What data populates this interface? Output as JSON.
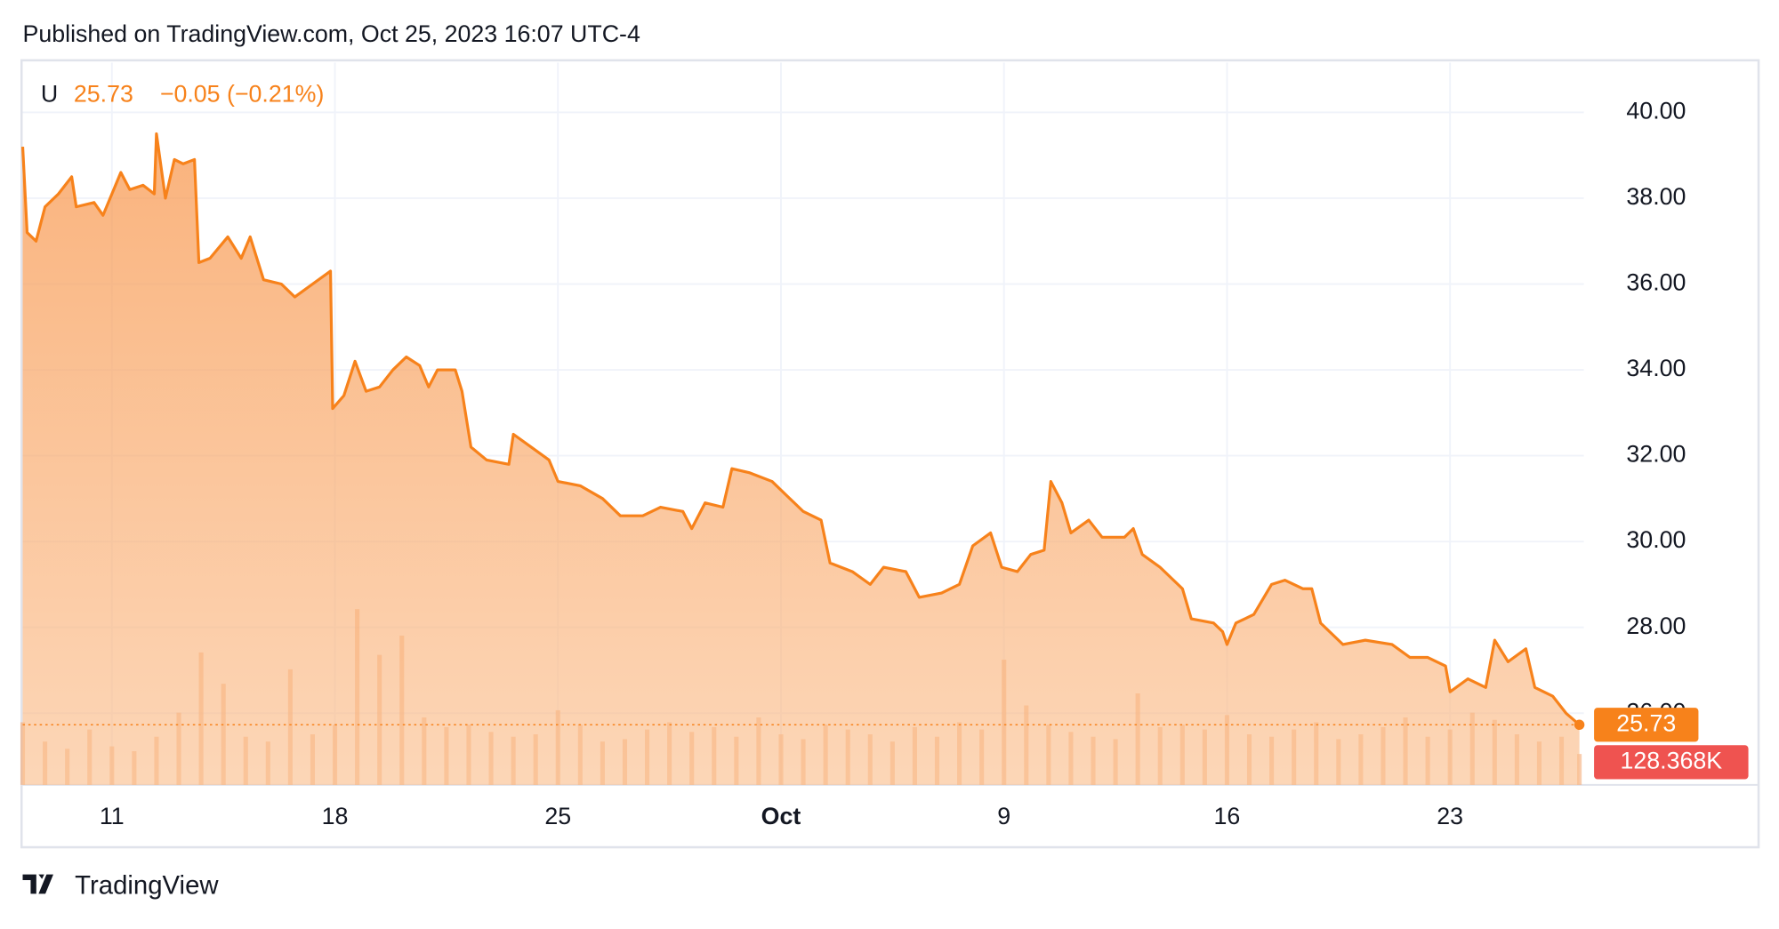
{
  "header": {
    "published": "Published on TradingView.com, Oct 25, 2023 16:07 UTC-4"
  },
  "footer": {
    "brand": "TradingView"
  },
  "chart_data": {
    "type": "area",
    "symbol": "U",
    "change": "−0.05 (−0.21%)",
    "xlim": [
      -2,
      33
    ],
    "xticks": [
      {
        "value": 0,
        "label": "11"
      },
      {
        "value": 5,
        "label": "18"
      },
      {
        "value": 10,
        "label": "25"
      },
      {
        "value": 15,
        "label": "Oct"
      },
      {
        "value": 20,
        "label": "9"
      },
      {
        "value": 25,
        "label": "16"
      },
      {
        "value": 30,
        "label": "23"
      }
    ],
    "ylim": [
      24.33,
      41.16
    ],
    "yticks": [
      {
        "value": 26,
        "label": "26.00"
      },
      {
        "value": 28,
        "label": "28.00"
      },
      {
        "value": 30,
        "label": "30.00"
      },
      {
        "value": 32,
        "label": "32.00"
      },
      {
        "value": 34,
        "label": "34.00"
      },
      {
        "value": 36,
        "label": "36.00"
      },
      {
        "value": 38,
        "label": "38.00"
      },
      {
        "value": 40,
        "label": "40.00"
      }
    ],
    "grid": true,
    "series": [
      {
        "name": "U",
        "color": "#f7821b",
        "x": [
          -2.0,
          -1.9,
          -1.7,
          -1.5,
          -1.2,
          -0.9,
          -0.8,
          -0.4,
          -0.2,
          0.2,
          0.4,
          0.7,
          0.95,
          1.0,
          1.2,
          1.4,
          1.6,
          1.85,
          1.95,
          2.2,
          2.6,
          2.9,
          3.1,
          3.4,
          3.8,
          4.1,
          4.5,
          4.9,
          4.95,
          5.2,
          5.45,
          5.7,
          6.0,
          6.3,
          6.6,
          6.9,
          7.1,
          7.3,
          7.7,
          7.85,
          8.05,
          8.4,
          8.9,
          9.0,
          9.4,
          9.8,
          10.0,
          10.5,
          11.0,
          11.4,
          11.9,
          12.3,
          12.8,
          13.0,
          13.3,
          13.7,
          13.9,
          14.3,
          14.8,
          15.1,
          15.5,
          15.9,
          16.1,
          16.6,
          17.0,
          17.3,
          17.8,
          18.1,
          18.6,
          19.0,
          19.3,
          19.7,
          19.95,
          20.3,
          20.6,
          20.9,
          21.05,
          21.3,
          21.5,
          21.9,
          22.2,
          22.7,
          22.9,
          23.1,
          23.5,
          24.0,
          24.2,
          24.7,
          24.9,
          25.0,
          25.2,
          25.6,
          26.0,
          26.3,
          26.7,
          26.9,
          27.1,
          27.6,
          28.1,
          28.7,
          29.1,
          29.5,
          29.9,
          30.0,
          30.4,
          30.8,
          31.0,
          31.3,
          31.7,
          31.9,
          32.3,
          32.6,
          32.9
        ],
        "values": [
          39.2,
          37.2,
          37.0,
          37.8,
          38.1,
          38.5,
          37.8,
          37.9,
          37.6,
          38.6,
          38.2,
          38.3,
          38.1,
          39.5,
          38.0,
          38.9,
          38.8,
          38.9,
          36.5,
          36.6,
          37.1,
          36.6,
          37.1,
          36.1,
          36.0,
          35.7,
          36.0,
          36.3,
          33.1,
          33.4,
          34.2,
          33.5,
          33.6,
          34.0,
          34.3,
          34.1,
          33.6,
          34.0,
          34.0,
          33.5,
          32.2,
          31.9,
          31.8,
          32.5,
          32.2,
          31.9,
          31.4,
          31.3,
          31.0,
          30.6,
          30.6,
          30.8,
          30.7,
          30.3,
          30.9,
          30.8,
          31.7,
          31.6,
          31.4,
          31.1,
          30.7,
          30.5,
          29.5,
          29.3,
          29.0,
          29.4,
          29.3,
          28.7,
          28.8,
          29.0,
          29.9,
          30.2,
          29.4,
          29.3,
          29.7,
          29.8,
          31.4,
          30.9,
          30.2,
          30.5,
          30.1,
          30.1,
          30.3,
          29.7,
          29.4,
          28.9,
          28.2,
          28.1,
          27.9,
          27.6,
          28.1,
          28.3,
          29.0,
          29.1,
          28.9,
          28.9,
          28.1,
          27.6,
          27.7,
          27.6,
          27.3,
          27.3,
          27.1,
          26.5,
          26.8,
          26.6,
          27.7,
          27.2,
          27.5,
          26.6,
          26.4,
          26.0,
          25.73
        ]
      }
    ],
    "volume": {
      "color": "#f4a46b",
      "ylim": [
        0,
        3000
      ],
      "label": "128.368K",
      "x": [
        -2,
        -1.5,
        -1,
        -0.5,
        0,
        0.5,
        1,
        1.5,
        2,
        2.5,
        3,
        3.5,
        4,
        4.5,
        5,
        5.5,
        6,
        6.5,
        7,
        7.5,
        8,
        8.5,
        9,
        9.5,
        10,
        10.5,
        11,
        11.5,
        12,
        12.5,
        13,
        13.5,
        14,
        14.5,
        15,
        15.5,
        16,
        16.5,
        17,
        17.5,
        18,
        18.5,
        19,
        19.5,
        20,
        20.5,
        21,
        21.5,
        22,
        22.5,
        23,
        23.5,
        24,
        24.5,
        25,
        25.5,
        26,
        26.5,
        27,
        27.5,
        28,
        28.5,
        29,
        29.5,
        30,
        30.5,
        31,
        31.5,
        32,
        32.5,
        32.9
      ],
      "values": [
        260,
        180,
        150,
        230,
        160,
        140,
        200,
        300,
        550,
        420,
        200,
        180,
        480,
        210,
        250,
        730,
        540,
        620,
        280,
        240,
        250,
        220,
        200,
        210,
        310,
        250,
        180,
        190,
        230,
        260,
        220,
        240,
        200,
        280,
        210,
        190,
        250,
        230,
        210,
        180,
        240,
        200,
        260,
        230,
        520,
        330,
        250,
        220,
        200,
        190,
        380,
        240,
        250,
        230,
        290,
        210,
        200,
        230,
        260,
        190,
        210,
        240,
        280,
        200,
        230,
        300,
        270,
        210,
        180,
        200,
        128.368
      ]
    }
  }
}
